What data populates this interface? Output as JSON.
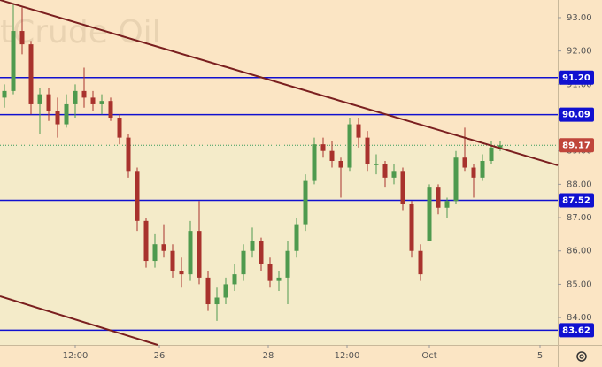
{
  "chart_data": {
    "type": "candlestick",
    "watermark": "tCrude Oil",
    "x": [
      1,
      2,
      3,
      4,
      5,
      6,
      7,
      8,
      9,
      10,
      11,
      12,
      13,
      14,
      15,
      16,
      17,
      18,
      19,
      20,
      21,
      22,
      23,
      24,
      25,
      26,
      27,
      28,
      29,
      30,
      31,
      32,
      33,
      34,
      35,
      36,
      37,
      38,
      39,
      40,
      41,
      42,
      43,
      44,
      45,
      46,
      47,
      48,
      49,
      50,
      51,
      52,
      53,
      54,
      55,
      56,
      57
    ],
    "open": [
      90.6,
      90.8,
      92.6,
      92.2,
      90.4,
      90.7,
      90.2,
      89.8,
      90.4,
      90.8,
      90.6,
      90.4,
      90.5,
      90.0,
      89.4,
      88.4,
      86.9,
      85.7,
      86.2,
      86.0,
      85.4,
      85.3,
      86.6,
      85.2,
      84.4,
      84.6,
      85.0,
      85.3,
      86.0,
      86.3,
      85.6,
      85.1,
      85.2,
      86.0,
      86.8,
      88.1,
      89.2,
      89.0,
      88.7,
      88.5,
      89.8,
      89.4,
      88.6,
      88.6,
      88.2,
      88.4,
      87.4,
      86.0,
      86.3,
      87.9,
      87.3,
      87.5,
      88.8,
      88.5,
      88.2,
      88.7,
      89.1
    ],
    "high": [
      91.0,
      93.4,
      93.3,
      92.3,
      90.9,
      90.9,
      90.6,
      90.7,
      91.0,
      91.5,
      90.8,
      90.7,
      90.6,
      90.1,
      89.5,
      88.5,
      87.0,
      86.5,
      86.8,
      86.2,
      85.8,
      86.9,
      87.5,
      85.4,
      84.9,
      85.2,
      85.6,
      86.2,
      86.7,
      86.4,
      85.8,
      85.4,
      86.3,
      87.0,
      88.3,
      89.4,
      89.4,
      89.3,
      88.8,
      90.0,
      90.0,
      89.6,
      88.9,
      88.7,
      88.6,
      88.5,
      87.5,
      86.2,
      88.0,
      88.0,
      87.6,
      89.0,
      89.7,
      88.6,
      88.9,
      89.3,
      89.3
    ],
    "low": [
      90.3,
      90.7,
      91.9,
      90.1,
      89.5,
      89.9,
      89.4,
      89.7,
      90.0,
      90.3,
      90.2,
      90.1,
      89.9,
      89.2,
      88.2,
      86.6,
      85.5,
      85.5,
      85.8,
      85.2,
      84.9,
      85.1,
      85.0,
      84.2,
      83.9,
      84.4,
      84.8,
      85.1,
      85.8,
      85.4,
      84.9,
      84.8,
      84.4,
      85.8,
      86.6,
      88.0,
      88.8,
      88.5,
      87.6,
      88.4,
      89.1,
      88.4,
      88.3,
      87.9,
      88.0,
      87.2,
      85.8,
      85.1,
      86.3,
      87.1,
      87.0,
      87.4,
      88.4,
      87.6,
      88.1,
      88.6,
      89.0
    ],
    "close": [
      90.8,
      92.6,
      92.2,
      90.4,
      90.7,
      90.2,
      89.8,
      90.4,
      90.8,
      90.6,
      90.4,
      90.5,
      90.0,
      89.4,
      88.4,
      86.9,
      85.7,
      86.2,
      86.0,
      85.4,
      85.3,
      86.6,
      85.2,
      84.4,
      84.6,
      85.0,
      85.3,
      86.0,
      86.3,
      85.6,
      85.1,
      85.2,
      86.0,
      86.8,
      88.1,
      89.2,
      89.0,
      88.7,
      88.5,
      89.8,
      89.4,
      88.6,
      88.6,
      88.2,
      88.4,
      87.4,
      86.0,
      85.3,
      87.9,
      87.3,
      87.5,
      88.8,
      88.5,
      88.2,
      88.7,
      89.1,
      89.17
    ],
    "up_color": "#4e9a4e",
    "down_color": "#a8322d",
    "xlim": [
      0.5,
      63.5
    ],
    "ylim": [
      83.18,
      93.53
    ],
    "xticks": [
      {
        "value": 9,
        "label": "12:00"
      },
      {
        "value": 18.5,
        "label": "26"
      },
      {
        "value": 30.8,
        "label": "28"
      },
      {
        "value": 39.7,
        "label": "12:00"
      },
      {
        "value": 49,
        "label": "Oct"
      },
      {
        "value": 61.5,
        "label": "5"
      }
    ],
    "yticks": [
      {
        "value": 84,
        "label": "84.00"
      },
      {
        "value": 85,
        "label": "85.00"
      },
      {
        "value": 86,
        "label": "86.00"
      },
      {
        "value": 87,
        "label": "87.00"
      },
      {
        "value": 88,
        "label": "88.00"
      },
      {
        "value": 89,
        "label": "89.00"
      },
      {
        "value": 90,
        "label": "90.00"
      },
      {
        "value": 91,
        "label": "91.00"
      },
      {
        "value": 92,
        "label": "92.00"
      },
      {
        "value": 93,
        "label": "93.00"
      }
    ],
    "levels": [
      {
        "value": 91.2,
        "label": "91.20"
      },
      {
        "value": 90.09,
        "label": "90.09"
      },
      {
        "value": 87.52,
        "label": "87.52"
      },
      {
        "value": 83.62,
        "label": "83.62"
      }
    ],
    "level_color": "#1010d0",
    "current_price": 89.17,
    "current_color": "#c0453a",
    "trendlines": [
      {
        "x": [
          0.5,
          63.5
        ],
        "y": [
          93.53,
          88.57
        ]
      },
      {
        "x": [
          0.5,
          18.3
        ],
        "y": [
          84.64,
          83.18
        ]
      }
    ],
    "trend_color": "#7a1f1f"
  }
}
